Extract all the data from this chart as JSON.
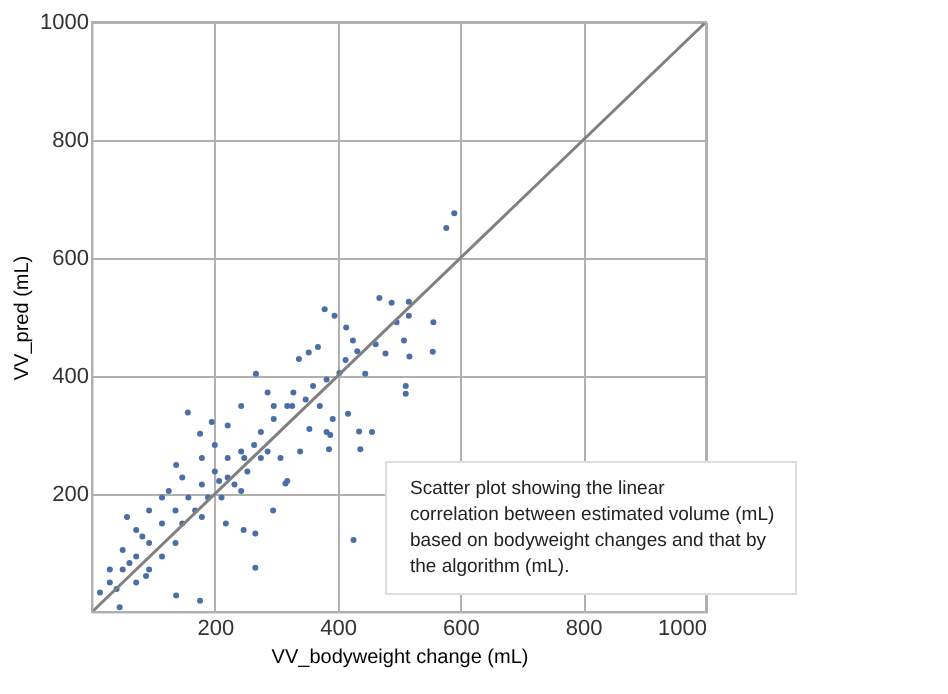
{
  "chart_data": {
    "type": "scatter",
    "xlabel": "VV_bodyweight change (mL)",
    "ylabel": "VV_pred (mL)",
    "xlim": [
      0,
      1000
    ],
    "ylim": [
      0,
      1000
    ],
    "xticks": [
      200,
      400,
      600,
      800,
      1000
    ],
    "yticks": [
      200,
      400,
      600,
      800,
      1000
    ],
    "grid": true,
    "marker": "circle",
    "annotations": [
      "Scatter plot showing the linear correlation between estimated volume (mL) based on bodyweight changes and that by the algorithm (mL)."
    ],
    "series": [
      {
        "type": "scatter",
        "color": "#4a6fa5",
        "x": [
          590,
          577,
          379,
          468,
          488,
          516,
          556,
          555,
          516,
          496,
          508,
          517,
          511,
          511,
          456,
          437,
          435,
          386,
          388,
          417,
          368,
          353,
          337,
          395,
          414,
          432,
          445,
          413,
          425,
          462,
          478,
          315,
          295,
          266,
          266,
          247,
          426,
          156,
          267,
          318,
          348,
          371,
          392,
          354,
          382,
          326,
          296,
          275,
          243,
          221,
          200,
          179,
          157,
          136,
          114,
          93,
          72,
          50,
          29,
          13,
          57,
          137,
          176,
          195,
          176,
          137,
          88,
          45,
          207,
          218,
          248,
          286,
          307,
          339,
          286,
          318,
          243,
          221,
          200,
          179,
          147,
          114,
          93,
          72,
          50,
          29,
          168,
          189,
          211,
          232,
          253,
          275,
          136,
          114,
          93,
          72,
          147,
          179,
          125,
          82,
          61,
          40,
          221,
          243,
          264,
          296,
          328,
          360,
          382,
          403
        ],
        "values": [
          676,
          651,
          513,
          532,
          524,
          526,
          491,
          441,
          502,
          491,
          460,
          433,
          383,
          370,
          305,
          276,
          306,
          276,
          300,
          336,
          449,
          440,
          429,
          502,
          482,
          442,
          404,
          427,
          460,
          454,
          438,
          218,
          172,
          133,
          75,
          139,
          122,
          338,
          404,
          222,
          360,
          349,
          327,
          310,
          305,
          349,
          349,
          305,
          272,
          261,
          238,
          216,
          194,
          172,
          150,
          117,
          94,
          72,
          50,
          33,
          161,
          249,
          302,
          322,
          19,
          28,
          61,
          8,
          222,
          150,
          261,
          272,
          261,
          272,
          372,
          349,
          349,
          316,
          283,
          261,
          228,
          194,
          172,
          139,
          105,
          72,
          172,
          194,
          194,
          216,
          238,
          261,
          117,
          94,
          72,
          50,
          150,
          161,
          205,
          128,
          83,
          39,
          228,
          205,
          283,
          327,
          372,
          383,
          394,
          405
        ]
      },
      {
        "type": "line",
        "color": "#808080",
        "marker": "none",
        "line_style": "solid",
        "x": [
          0,
          1000
        ],
        "values": [
          0,
          1000
        ]
      }
    ]
  }
}
